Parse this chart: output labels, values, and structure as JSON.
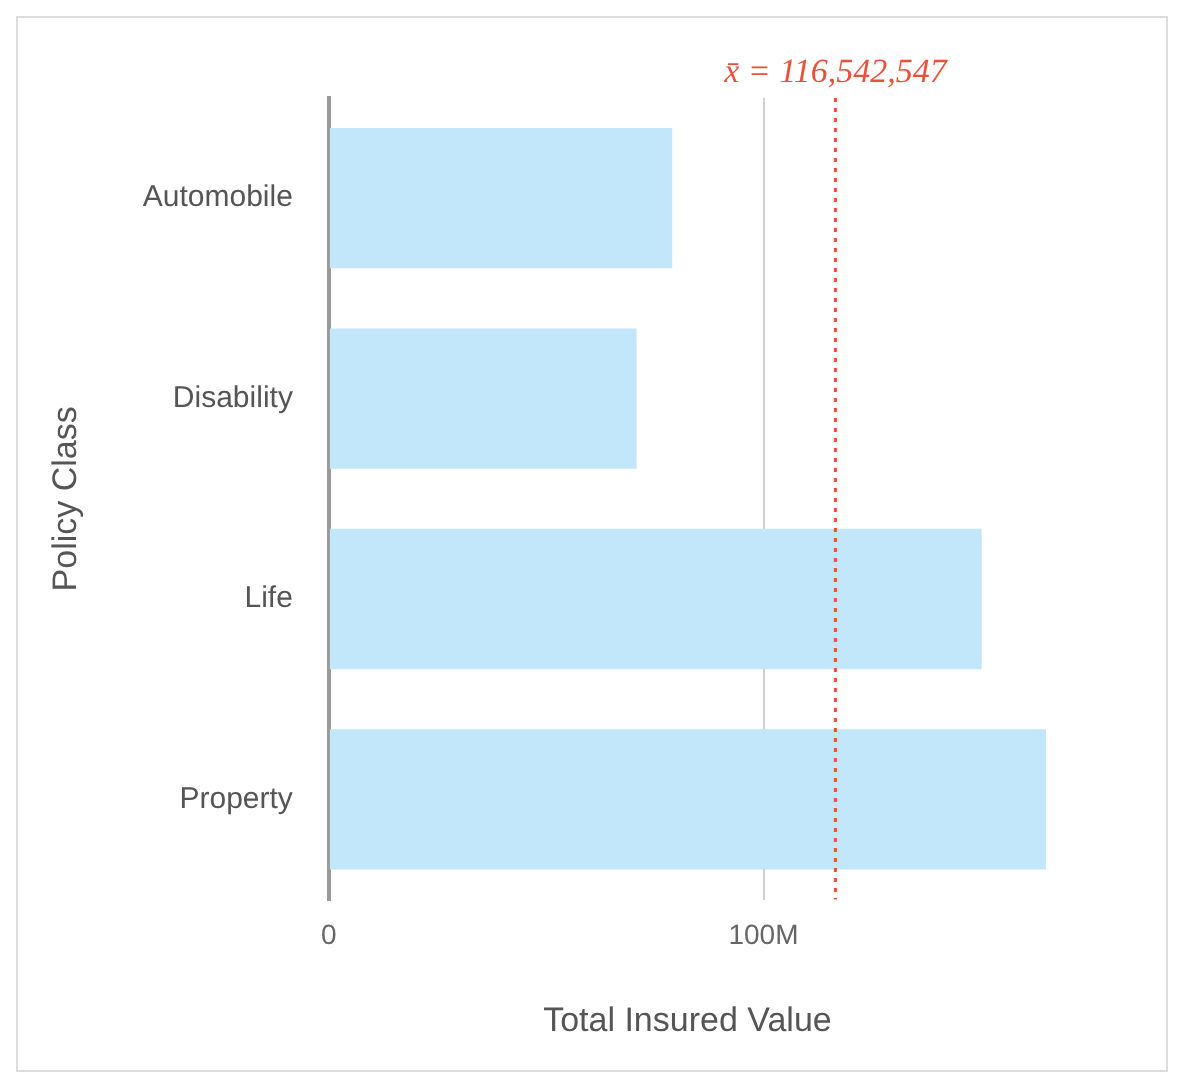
{
  "chart_data": {
    "type": "bar",
    "orientation": "horizontal",
    "xlabel": "Total Insured Value",
    "ylabel": "Policy Class",
    "categories": [
      "Automobile",
      "Disability",
      "Life",
      "Property"
    ],
    "values": [
      79000000,
      70800000,
      150200000,
      165000000
    ],
    "color": "#c2e7fa",
    "xlim": [
      0,
      165000000
    ],
    "xticks": [
      0,
      {
        "value": 100000000,
        "label": "100M"
      }
    ],
    "grid": "x",
    "ref_lines": [
      {
        "axis": "x",
        "value": 116542547,
        "label": "x̄ = 116,542,547",
        "color": "#e8523a",
        "line_style": "dotted"
      }
    ]
  }
}
